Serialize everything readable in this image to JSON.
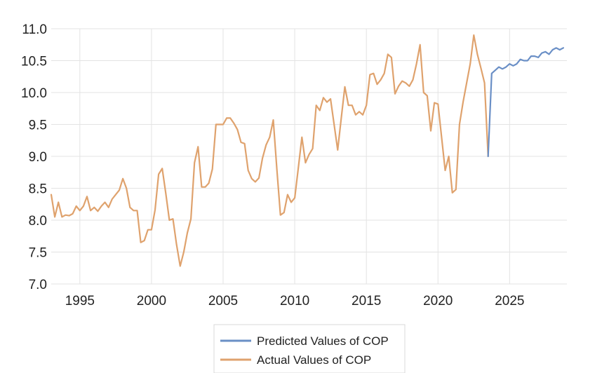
{
  "chart_data": {
    "type": "line",
    "title": "",
    "xlabel": "",
    "ylabel": "",
    "xlim": [
      1993.0,
      2029.0
    ],
    "ylim": [
      7.0,
      11.0
    ],
    "x_ticks": [
      1995,
      2000,
      2005,
      2010,
      2015,
      2020,
      2025
    ],
    "y_ticks": [
      7.0,
      7.5,
      8.0,
      8.5,
      9.0,
      9.5,
      10.0,
      10.5,
      11.0
    ],
    "y_tick_labels": [
      "7.0",
      "7.5",
      "8.0",
      "8.5",
      "9.0",
      "9.5",
      "10.0",
      "10.5",
      "11.0"
    ],
    "x_tick_labels": [
      "1995",
      "2000",
      "2005",
      "2010",
      "2015",
      "2020",
      "2025"
    ],
    "grid": true,
    "legend_position": "bottom-center",
    "series": [
      {
        "name": "Predicted Values of COP",
        "color": "#6a8fc6",
        "x": [
          2023.5,
          2023.75,
          2024.0,
          2024.25,
          2024.5,
          2024.75,
          2025.0,
          2025.25,
          2025.5,
          2025.75,
          2026.0,
          2026.25,
          2026.5,
          2026.75,
          2027.0,
          2027.25,
          2027.5,
          2027.75,
          2028.0,
          2028.25,
          2028.5,
          2028.75
        ],
        "y": [
          9.0,
          10.3,
          10.35,
          10.4,
          10.37,
          10.4,
          10.45,
          10.42,
          10.45,
          10.52,
          10.5,
          10.5,
          10.57,
          10.57,
          10.55,
          10.62,
          10.64,
          10.6,
          10.67,
          10.7,
          10.67,
          10.7
        ]
      },
      {
        "name": "Actual Values of COP",
        "color": "#dfa26d",
        "x": [
          1993.0,
          1993.25,
          1993.5,
          1993.75,
          1994.0,
          1994.25,
          1994.5,
          1994.75,
          1995.0,
          1995.25,
          1995.5,
          1995.75,
          1996.0,
          1996.25,
          1996.5,
          1996.75,
          1997.0,
          1997.25,
          1997.5,
          1997.75,
          1998.0,
          1998.25,
          1998.5,
          1998.75,
          1999.0,
          1999.25,
          1999.5,
          1999.75,
          2000.0,
          2000.25,
          2000.5,
          2000.75,
          2001.0,
          2001.25,
          2001.5,
          2001.75,
          2002.0,
          2002.25,
          2002.5,
          2002.75,
          2003.0,
          2003.25,
          2003.5,
          2003.75,
          2004.0,
          2004.25,
          2004.5,
          2004.75,
          2005.0,
          2005.25,
          2005.5,
          2005.75,
          2006.0,
          2006.25,
          2006.5,
          2006.75,
          2007.0,
          2007.25,
          2007.5,
          2007.75,
          2008.0,
          2008.25,
          2008.5,
          2008.75,
          2009.0,
          2009.25,
          2009.5,
          2009.75,
          2010.0,
          2010.25,
          2010.5,
          2010.75,
          2011.0,
          2011.25,
          2011.5,
          2011.75,
          2012.0,
          2012.25,
          2012.5,
          2012.75,
          2013.0,
          2013.25,
          2013.5,
          2013.75,
          2014.0,
          2014.25,
          2014.5,
          2014.75,
          2015.0,
          2015.25,
          2015.5,
          2015.75,
          2016.0,
          2016.25,
          2016.5,
          2016.75,
          2017.0,
          2017.25,
          2017.5,
          2017.75,
          2018.0,
          2018.25,
          2018.5,
          2018.75,
          2019.0,
          2019.25,
          2019.5,
          2019.75,
          2020.0,
          2020.25,
          2020.5,
          2020.75,
          2021.0,
          2021.25,
          2021.5,
          2021.75,
          2022.0,
          2022.25,
          2022.5,
          2022.75,
          2023.0,
          2023.25,
          2023.5
        ],
        "y": [
          8.4,
          8.05,
          8.28,
          8.05,
          8.08,
          8.07,
          8.1,
          8.22,
          8.15,
          8.22,
          8.37,
          8.15,
          8.2,
          8.14,
          8.22,
          8.28,
          8.2,
          8.33,
          8.4,
          8.47,
          8.65,
          8.5,
          8.2,
          8.15,
          8.15,
          7.65,
          7.68,
          7.85,
          7.85,
          8.16,
          8.72,
          8.81,
          8.42,
          8.0,
          8.02,
          7.62,
          7.28,
          7.5,
          7.8,
          8.02,
          8.9,
          9.15,
          8.52,
          8.52,
          8.58,
          8.8,
          9.5,
          9.5,
          9.5,
          9.6,
          9.6,
          9.52,
          9.42,
          9.22,
          9.2,
          8.78,
          8.65,
          8.6,
          8.66,
          8.97,
          9.18,
          9.3,
          9.57,
          8.8,
          8.08,
          8.12,
          8.4,
          8.28,
          8.35,
          8.82,
          9.3,
          8.9,
          9.03,
          9.12,
          9.8,
          9.72,
          9.92,
          9.85,
          9.9,
          9.5,
          9.1,
          9.6,
          10.09,
          9.8,
          9.8,
          9.65,
          9.7,
          9.65,
          9.8,
          10.28,
          10.3,
          10.13,
          10.2,
          10.3,
          10.6,
          10.55,
          9.98,
          10.1,
          10.18,
          10.15,
          10.1,
          10.2,
          10.45,
          10.75,
          10.0,
          9.95,
          9.4,
          9.84,
          9.82,
          9.3,
          8.78,
          9.0,
          8.43,
          8.48,
          9.5,
          9.85,
          10.15,
          10.45,
          10.9,
          10.6,
          10.38,
          10.15,
          9.0
        ]
      }
    ]
  }
}
